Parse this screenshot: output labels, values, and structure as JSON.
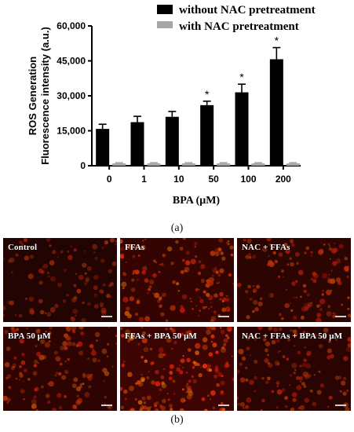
{
  "chart_data": {
    "type": "bar",
    "categories": [
      "0",
      "1",
      "10",
      "50",
      "100",
      "200"
    ],
    "series": [
      {
        "name": "without NAC pretreatment",
        "color": "#000000",
        "values": [
          15800,
          18700,
          21000,
          26000,
          31500,
          45700
        ],
        "errors": [
          2000,
          2500,
          2300,
          1700,
          3500,
          5000
        ]
      },
      {
        "name": "with NAC pretreatment",
        "color": "#a6a6a6",
        "values": [
          1000,
          1000,
          1000,
          1000,
          1000,
          1000
        ],
        "errors": [
          300,
          300,
          300,
          300,
          300,
          300
        ]
      }
    ],
    "significance": [
      "",
      "",
      "",
      "*",
      "*",
      "*"
    ],
    "xlabel": "BPA (μM)",
    "ylabel_line1": "ROS Generation",
    "ylabel_line2": "Fluorescence intensity (a.u.)",
    "ylim": [
      0,
      60000
    ],
    "yticks": [
      0,
      15000,
      30000,
      45000,
      60000
    ],
    "ytick_labels": [
      "0",
      "15,000",
      "30,000",
      "45,000",
      "60,000"
    ],
    "legend_position": "top-right",
    "panel_label": "(a)"
  },
  "micrographs": {
    "panel_label": "(b)",
    "panels": [
      {
        "label": "Control",
        "intensity": 0.35
      },
      {
        "label": "FFAs",
        "intensity": 0.8
      },
      {
        "label": "NAC + FFAs",
        "intensity": 0.6
      },
      {
        "label": "BPA 50 μM",
        "intensity": 0.65
      },
      {
        "label": "FFAs + BPA 50 μM",
        "intensity": 1.0
      },
      {
        "label": "NAC + FFAs + BPA 50 μM",
        "intensity": 0.55
      }
    ]
  }
}
